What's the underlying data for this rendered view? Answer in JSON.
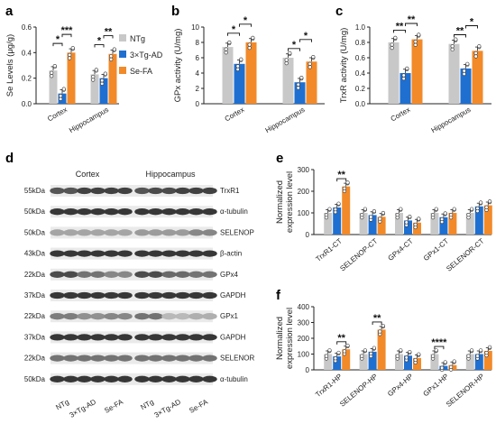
{
  "colors": {
    "NTg": "#c8c8c8",
    "3xTg-AD": "#1f6fd1",
    "Se-FA": "#f28a2a",
    "dots": "#ffffff"
  },
  "legend": {
    "items": [
      "NTg",
      "3×Tg-AD",
      "Se-FA"
    ]
  },
  "panel_labels": [
    "a",
    "b",
    "c",
    "d",
    "e",
    "f"
  ],
  "chart_data": [
    {
      "panel": "a",
      "type": "bar",
      "ylabel": "Se Levels (μg/g)",
      "ylim": [
        0,
        0.6
      ],
      "yticks": [
        "0.0",
        "0.2",
        "0.4",
        "0.6"
      ],
      "categories": [
        "Cortex",
        "Hippocampus"
      ],
      "series": [
        {
          "name": "NTg",
          "values": [
            0.26,
            0.23
          ]
        },
        {
          "name": "3×Tg-AD",
          "values": [
            0.08,
            0.2
          ]
        },
        {
          "name": "Se-FA",
          "values": [
            0.4,
            0.39
          ]
        }
      ],
      "significance": [
        {
          "category": 0,
          "from": 0,
          "to": 1,
          "label": "*"
        },
        {
          "category": 0,
          "from": 1,
          "to": 2,
          "label": "***"
        },
        {
          "category": 1,
          "from": 0,
          "to": 1,
          "label": "*"
        },
        {
          "category": 1,
          "from": 1,
          "to": 2,
          "label": "**"
        }
      ]
    },
    {
      "panel": "b",
      "type": "bar",
      "ylabel": "GPx activity (U/mg)",
      "ylim": [
        0,
        10
      ],
      "yticks": [
        "0",
        "2",
        "4",
        "6",
        "8",
        "10"
      ],
      "categories": [
        "Cortex",
        "Hippocampus"
      ],
      "series": [
        {
          "name": "NTg",
          "values": [
            7.4,
            6.0
          ]
        },
        {
          "name": "3×Tg-AD",
          "values": [
            5.2,
            2.8
          ]
        },
        {
          "name": "Se-FA",
          "values": [
            8.0,
            5.5
          ]
        }
      ],
      "significance": [
        {
          "category": 0,
          "from": 0,
          "to": 1,
          "label": "*"
        },
        {
          "category": 0,
          "from": 1,
          "to": 2,
          "label": "*"
        },
        {
          "category": 1,
          "from": 0,
          "to": 1,
          "label": "*"
        },
        {
          "category": 1,
          "from": 1,
          "to": 2,
          "label": "*"
        }
      ]
    },
    {
      "panel": "c",
      "type": "bar",
      "ylabel": "TrxR activity (U/mg)",
      "ylim": [
        0,
        1.0
      ],
      "yticks": [
        "0.0",
        "0.2",
        "0.4",
        "0.6",
        "0.8",
        "1.0"
      ],
      "categories": [
        "Cortex",
        "Hippocampus"
      ],
      "series": [
        {
          "name": "NTg",
          "values": [
            0.8,
            0.78
          ]
        },
        {
          "name": "3×Tg-AD",
          "values": [
            0.4,
            0.46
          ]
        },
        {
          "name": "Se-FA",
          "values": [
            0.84,
            0.69
          ]
        }
      ],
      "significance": [
        {
          "category": 0,
          "from": 0,
          "to": 1,
          "label": "**"
        },
        {
          "category": 0,
          "from": 1,
          "to": 2,
          "label": "**"
        },
        {
          "category": 1,
          "from": 0,
          "to": 1,
          "label": "**"
        },
        {
          "category": 1,
          "from": 1,
          "to": 2,
          "label": "*"
        }
      ]
    },
    {
      "panel": "e",
      "type": "bar",
      "ylabel": "Normalized expression level",
      "ylim": [
        0,
        300
      ],
      "yticks": [
        "0",
        "100",
        "200",
        "300"
      ],
      "categories": [
        "TrxR1-CT",
        "SELENOP-CT",
        "GPx4-CT",
        "GPx1-CT",
        "SELENOR-CT"
      ],
      "series": [
        {
          "name": "NTg",
          "values": [
            100,
            100,
            100,
            100,
            100
          ]
        },
        {
          "name": "3×Tg-AD",
          "values": [
            125,
            90,
            65,
            80,
            130
          ]
        },
        {
          "name": "Se-FA",
          "values": [
            222,
            82,
            55,
            100,
            135
          ]
        }
      ],
      "significance": [
        {
          "category": 0,
          "from": 1,
          "to": 2,
          "label": "**"
        }
      ]
    },
    {
      "panel": "f",
      "type": "bar",
      "ylabel": "Normalized expression level",
      "ylim": [
        0,
        400
      ],
      "yticks": [
        "0",
        "100",
        "200",
        "300",
        "400"
      ],
      "categories": [
        "TrxR1-HP",
        "SELENOP-HP",
        "GPx4-HP",
        "GPx1-HP",
        "SELENOR-HP"
      ],
      "series": [
        {
          "name": "NTg",
          "values": [
            100,
            100,
            100,
            100,
            100
          ]
        },
        {
          "name": "3×Tg-AD",
          "values": [
            85,
            115,
            90,
            25,
            100
          ]
        },
        {
          "name": "Se-FA",
          "values": [
            130,
            255,
            75,
            30,
            120
          ]
        }
      ],
      "significance": [
        {
          "category": 0,
          "from": 1,
          "to": 2,
          "label": "**"
        },
        {
          "category": 1,
          "from": 1,
          "to": 2,
          "label": "**"
        },
        {
          "category": 3,
          "from": 0,
          "to": 1,
          "label": "****"
        }
      ]
    }
  ],
  "western_blot": {
    "headers": [
      "Cortex",
      "Hippocampus"
    ],
    "rows": [
      {
        "mw": "55kDa",
        "protein": "TrxR1",
        "intensity": [
          0.75,
          0.75,
          0.85,
          0.85,
          0.85,
          0.85,
          0.75,
          0.8,
          0.8,
          0.85,
          0.85,
          0.85
        ]
      },
      {
        "mw": "50kDa",
        "protein": "α-tubulin",
        "intensity": [
          0.9,
          0.9,
          0.9,
          0.9,
          0.9,
          0.9,
          0.9,
          0.9,
          0.9,
          0.9,
          0.9,
          0.9
        ]
      },
      {
        "mw": "50kDa",
        "protein": "SELENOP",
        "intensity": [
          0.35,
          0.35,
          0.35,
          0.35,
          0.35,
          0.35,
          0.4,
          0.4,
          0.4,
          0.4,
          0.5,
          0.5
        ]
      },
      {
        "mw": "43kDa",
        "protein": "β-actin",
        "intensity": [
          0.9,
          0.9,
          0.9,
          0.9,
          0.9,
          0.9,
          0.9,
          0.9,
          0.9,
          0.9,
          0.9,
          0.9
        ]
      },
      {
        "mw": "22kDa",
        "protein": "GPx4",
        "intensity": [
          0.8,
          0.8,
          0.6,
          0.6,
          0.5,
          0.5,
          0.8,
          0.8,
          0.65,
          0.65,
          0.6,
          0.6
        ]
      },
      {
        "mw": "37kDa",
        "protein": "GAPDH",
        "intensity": [
          0.9,
          0.9,
          0.9,
          0.9,
          0.9,
          0.9,
          0.9,
          0.9,
          0.9,
          0.9,
          0.9,
          0.9
        ]
      },
      {
        "mw": "22kDa",
        "protein": "GPx1",
        "intensity": [
          0.55,
          0.55,
          0.45,
          0.45,
          0.5,
          0.5,
          0.6,
          0.6,
          0.25,
          0.25,
          0.3,
          0.3
        ]
      },
      {
        "mw": "37kDa",
        "protein": "GAPDH",
        "intensity": [
          0.9,
          0.9,
          0.9,
          0.9,
          0.9,
          0.9,
          0.9,
          0.9,
          0.9,
          0.9,
          0.9,
          0.9
        ]
      },
      {
        "mw": "22kDa",
        "protein": "SELENOR",
        "intensity": [
          0.6,
          0.6,
          0.6,
          0.6,
          0.6,
          0.6,
          0.6,
          0.6,
          0.6,
          0.6,
          0.6,
          0.6
        ]
      },
      {
        "mw": "50kDa",
        "protein": "α-tubulin",
        "intensity": [
          0.9,
          0.9,
          0.9,
          0.9,
          0.9,
          0.9,
          0.9,
          0.9,
          0.9,
          0.9,
          0.9,
          0.9
        ]
      }
    ],
    "groups": [
      "NTg",
      "3×Tg-AD",
      "Se-FA",
      "NTg",
      "3×Tg-AD",
      "Se-FA"
    ]
  }
}
